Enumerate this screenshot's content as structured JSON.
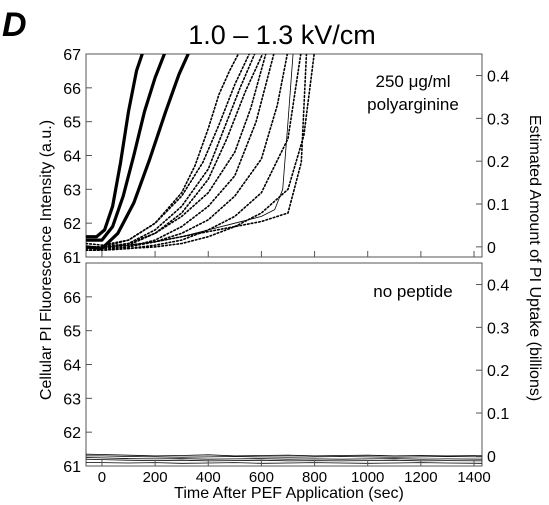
{
  "figure": {
    "panel_letter": "D",
    "title": "1.0 – 1.3 kV/cm"
  },
  "chart_data": [
    {
      "type": "line",
      "panel": "top",
      "annotation": [
        "250 μg/ml",
        "polyarginine"
      ],
      "xlabel": "Time After PEF Application (sec)",
      "ylabel": "Cellular PI Fluorescence Intensity (a.u.)",
      "ylabel_right": "Estimated Amount of PI Uptake (billions)",
      "xlim": [
        -60,
        1430
      ],
      "ylim": [
        61,
        67
      ],
      "y_ticks": [
        61,
        62,
        63,
        64,
        65,
        66,
        67
      ],
      "y2_ticks": [
        0,
        0.1,
        0.2,
        0.3,
        0.4
      ],
      "y2_zero_at_y": 61.3,
      "y2_per_unit_y": 0.079,
      "grid": false,
      "series": [
        {
          "style": "bold",
          "x": [
            -60,
            -20,
            10,
            40,
            70,
            100,
            130,
            160
          ],
          "y": [
            61.6,
            61.6,
            61.8,
            62.5,
            63.8,
            65.3,
            66.5,
            67.2
          ]
        },
        {
          "style": "bold",
          "x": [
            -60,
            0,
            40,
            80,
            120,
            160,
            200,
            240
          ],
          "y": [
            61.5,
            61.5,
            61.9,
            62.8,
            64.0,
            65.3,
            66.3,
            67.1
          ]
        },
        {
          "style": "bold",
          "x": [
            -60,
            0,
            60,
            120,
            180,
            240,
            290,
            330
          ],
          "y": [
            61.3,
            61.25,
            61.7,
            62.6,
            63.9,
            65.3,
            66.4,
            67.1
          ]
        },
        {
          "style": "dotted",
          "x": [
            -60,
            0,
            100,
            200,
            300,
            350,
            400,
            440,
            480,
            520
          ],
          "y": [
            61.4,
            61.35,
            61.5,
            62.0,
            62.9,
            63.7,
            64.8,
            65.8,
            66.5,
            67.1
          ]
        },
        {
          "style": "dotted",
          "x": [
            -60,
            0,
            100,
            200,
            300,
            380,
            440,
            500,
            560
          ],
          "y": [
            61.3,
            61.3,
            61.5,
            62.0,
            62.8,
            63.8,
            64.9,
            66.1,
            67.1
          ]
        },
        {
          "style": "dotted",
          "x": [
            -60,
            0,
            100,
            200,
            300,
            400,
            460,
            520,
            580
          ],
          "y": [
            61.3,
            61.25,
            61.4,
            61.8,
            62.5,
            63.6,
            64.8,
            66.0,
            67.1
          ]
        },
        {
          "style": "dotted",
          "x": [
            -60,
            0,
            100,
            200,
            300,
            400,
            470,
            540,
            610
          ],
          "y": [
            61.25,
            61.25,
            61.35,
            61.7,
            62.3,
            63.3,
            64.5,
            65.9,
            67.1
          ]
        },
        {
          "style": "dotted",
          "x": [
            -60,
            0,
            100,
            200,
            300,
            400,
            500,
            560,
            620
          ],
          "y": [
            61.3,
            61.3,
            61.4,
            61.7,
            62.2,
            62.9,
            64.1,
            65.4,
            67.1
          ]
        },
        {
          "style": "dotted",
          "x": [
            -60,
            0,
            100,
            200,
            300,
            400,
            500,
            580,
            650
          ],
          "y": [
            61.2,
            61.2,
            61.3,
            61.5,
            61.9,
            62.5,
            63.4,
            65.0,
            67.1
          ]
        },
        {
          "style": "dotted",
          "x": [
            -60,
            0,
            100,
            200,
            300,
            400,
            500,
            600,
            660,
            700
          ],
          "y": [
            61.25,
            61.25,
            61.3,
            61.45,
            61.7,
            62.1,
            62.8,
            63.9,
            65.5,
            67.1
          ]
        },
        {
          "style": "dotted",
          "x": [
            -60,
            0,
            100,
            200,
            300,
            400,
            500,
            600,
            700,
            750
          ],
          "y": [
            61.2,
            61.2,
            61.25,
            61.35,
            61.5,
            61.8,
            62.2,
            62.9,
            64.5,
            67.1
          ]
        },
        {
          "style": "dotted",
          "x": [
            -60,
            0,
            100,
            200,
            300,
            400,
            500,
            600,
            700,
            760,
            800
          ],
          "y": [
            61.2,
            61.2,
            61.25,
            61.3,
            61.4,
            61.6,
            61.9,
            62.3,
            63.0,
            64.6,
            67.1
          ]
        },
        {
          "style": "dotted",
          "x": [
            -60,
            0,
            100,
            200,
            300,
            400,
            500,
            600,
            700,
            750,
            770
          ],
          "y": [
            61.3,
            61.3,
            61.35,
            61.45,
            61.6,
            61.75,
            61.9,
            62.05,
            62.3,
            63.8,
            67.1
          ]
        },
        {
          "style": "thin",
          "x": [
            -60,
            0,
            100,
            200,
            300,
            400,
            500,
            600,
            650,
            680,
            700,
            720
          ],
          "y": [
            61.3,
            61.3,
            61.35,
            61.45,
            61.6,
            61.8,
            62.0,
            62.2,
            62.4,
            63.0,
            65.0,
            67.1
          ]
        }
      ]
    },
    {
      "type": "line",
      "panel": "bottom",
      "annotation": [
        "no peptide"
      ],
      "xlim": [
        -60,
        1430
      ],
      "ylim": [
        61,
        67
      ],
      "x_ticks": [
        0,
        200,
        400,
        600,
        800,
        1000,
        1200,
        1400
      ],
      "y_ticks": [
        61,
        62,
        63,
        64,
        65,
        66
      ],
      "y2_ticks": [
        0,
        0.1,
        0.2,
        0.3,
        0.4
      ],
      "grid": false,
      "series": [
        {
          "style": "thin",
          "x": [
            -60,
            0,
            100,
            200,
            300,
            400,
            500,
            600,
            700,
            800,
            900,
            1000,
            1100,
            1200,
            1300,
            1430
          ],
          "y": [
            61.3,
            61.3,
            61.28,
            61.27,
            61.26,
            61.27,
            61.28,
            61.27,
            61.26,
            61.27,
            61.28,
            61.27,
            61.26,
            61.27,
            61.28,
            61.27
          ]
        },
        {
          "style": "thin",
          "x": [
            -60,
            0,
            100,
            200,
            300,
            400,
            500,
            600,
            700,
            800,
            900,
            1000,
            1100,
            1200,
            1300,
            1430
          ],
          "y": [
            61.25,
            61.24,
            61.22,
            61.21,
            61.22,
            61.2,
            61.21,
            61.22,
            61.2,
            61.21,
            61.2,
            61.21,
            61.22,
            61.2,
            61.21,
            61.2
          ]
        },
        {
          "style": "thin",
          "x": [
            -60,
            0,
            100,
            200,
            300,
            400,
            500,
            600,
            700,
            800,
            900,
            1000,
            1100,
            1200,
            1300,
            1430
          ],
          "y": [
            61.2,
            61.19,
            61.17,
            61.16,
            61.17,
            61.15,
            61.16,
            61.17,
            61.15,
            61.16,
            61.15,
            61.16,
            61.17,
            61.15,
            61.16,
            61.15
          ]
        },
        {
          "style": "thin",
          "x": [
            -60,
            0,
            100,
            200,
            300,
            400,
            500,
            600,
            700,
            800,
            900,
            1000,
            1100,
            1200,
            1300,
            1430
          ],
          "y": [
            61.35,
            61.34,
            61.32,
            61.3,
            61.31,
            61.33,
            61.3,
            61.31,
            61.32,
            61.3,
            61.31,
            61.32,
            61.3,
            61.31,
            61.3,
            61.31
          ]
        },
        {
          "style": "thin",
          "x": [
            -60,
            0,
            100,
            200,
            300,
            400,
            500,
            600,
            700,
            800,
            900,
            1000,
            1100,
            1200,
            1300,
            1430
          ],
          "y": [
            61.1,
            61.1,
            61.09,
            61.1,
            61.08,
            61.09,
            61.1,
            61.08,
            61.09,
            61.1,
            61.09,
            61.08,
            61.09,
            61.1,
            61.09,
            61.08
          ]
        }
      ]
    }
  ]
}
